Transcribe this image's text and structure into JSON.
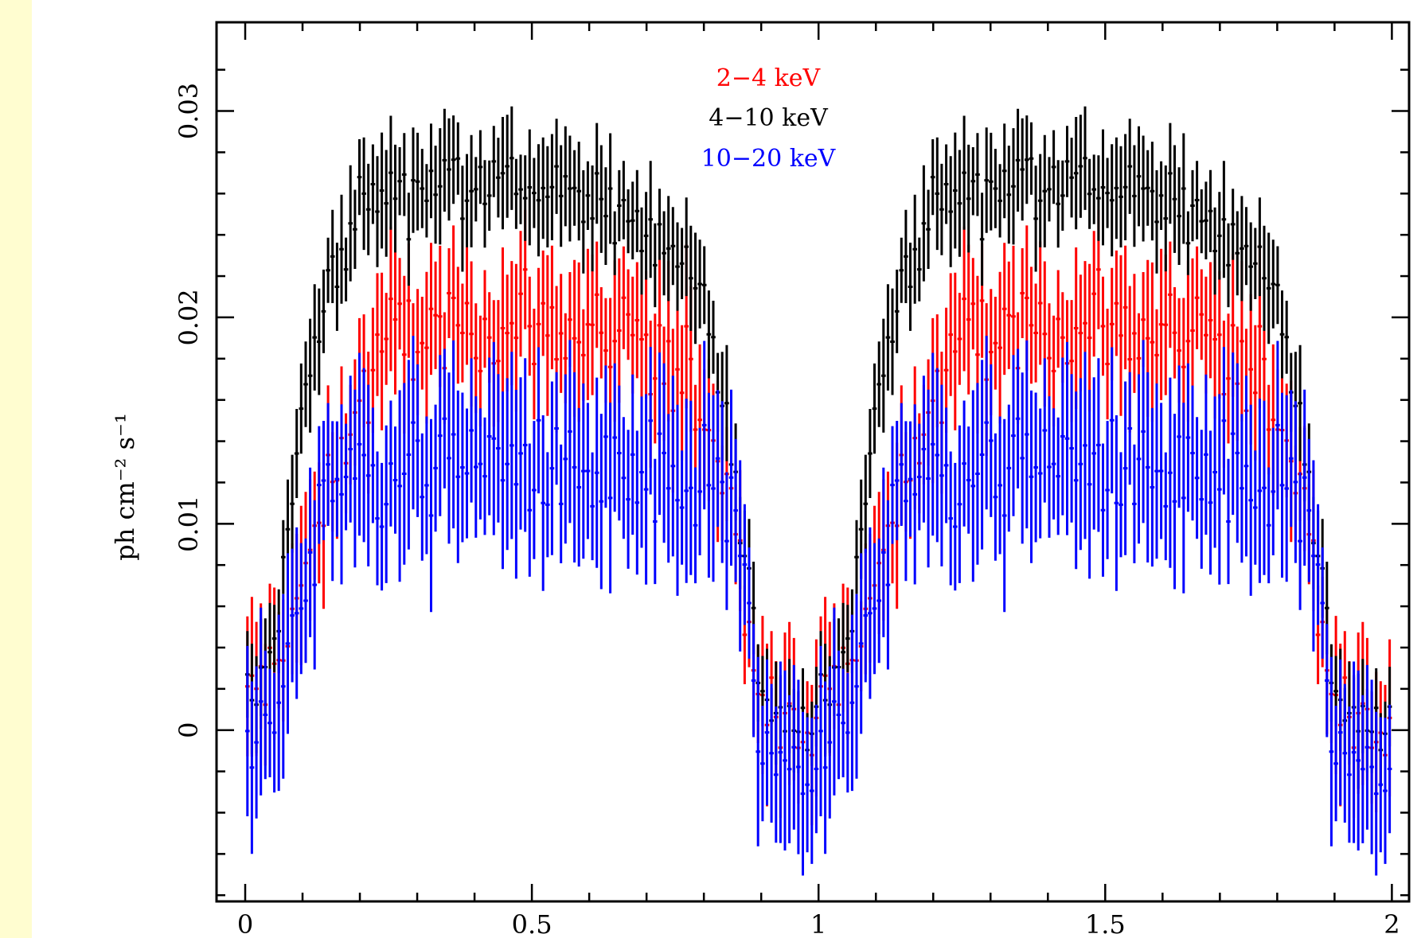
{
  "chart_data": {
    "type": "scatter",
    "title": "",
    "xlabel": "",
    "ylabel": "ph cm⁻² s⁻¹",
    "xlim": [
      -0.05,
      2.03
    ],
    "ylim": [
      -0.0083,
      0.0343
    ],
    "x_ticks": [
      {
        "value": 0,
        "label": "0"
      },
      {
        "value": 0.5,
        "label": "0.5"
      },
      {
        "value": 1,
        "label": "1"
      },
      {
        "value": 1.5,
        "label": "1.5"
      },
      {
        "value": 2,
        "label": "2"
      }
    ],
    "y_ticks": [
      {
        "value": 0,
        "label": "0"
      },
      {
        "value": 0.01,
        "label": "0.01"
      },
      {
        "value": 0.02,
        "label": "0.02"
      },
      {
        "value": 0.03,
        "label": "0.03"
      }
    ],
    "grid": false,
    "legend_position": "top-center",
    "bins_per_cycle": 128,
    "cycles_shown": 2,
    "series": [
      {
        "name": "2−4 keV",
        "color": "#ff0000",
        "x_period": 1,
        "profile_x": [
          0,
          0.05,
          0.1,
          0.15,
          0.2,
          0.25,
          0.3,
          0.35,
          0.4,
          0.45,
          0.5,
          0.55,
          0.6,
          0.65,
          0.7,
          0.75,
          0.8,
          0.85,
          0.9,
          0.95,
          1.0
        ],
        "profile_y": [
          0.0012,
          0.003,
          0.007,
          0.012,
          0.016,
          0.019,
          0.019,
          0.019,
          0.0195,
          0.0195,
          0.0195,
          0.0195,
          0.019,
          0.0185,
          0.018,
          0.0175,
          0.016,
          0.011,
          0.0018,
          0.0003,
          0.0012
        ],
        "error_y": 0.0031
      },
      {
        "name": "4−10 keV",
        "color": "#000000",
        "x_period": 1,
        "profile_x": [
          0,
          0.05,
          0.1,
          0.15,
          0.2,
          0.25,
          0.3,
          0.35,
          0.4,
          0.45,
          0.5,
          0.55,
          0.6,
          0.65,
          0.7,
          0.75,
          0.8,
          0.85,
          0.9,
          0.95,
          1.0
        ],
        "profile_y": [
          0.0006,
          0.0035,
          0.016,
          0.022,
          0.0255,
          0.0262,
          0.0265,
          0.027,
          0.0268,
          0.0265,
          0.0265,
          0.026,
          0.0255,
          0.025,
          0.0245,
          0.0235,
          0.0205,
          0.014,
          0.0012,
          0.0005,
          0.0006
        ],
        "error_y": 0.0022
      },
      {
        "name": "10−20 keV",
        "color": "#0000ff",
        "x_period": 1,
        "profile_x": [
          0,
          0.05,
          0.1,
          0.15,
          0.2,
          0.25,
          0.3,
          0.35,
          0.4,
          0.45,
          0.5,
          0.55,
          0.6,
          0.65,
          0.7,
          0.75,
          0.8,
          0.85,
          0.9,
          0.95,
          1.0
        ],
        "profile_y": [
          -0.0018,
          0.0,
          0.007,
          0.0125,
          0.0125,
          0.0125,
          0.0128,
          0.013,
          0.0132,
          0.013,
          0.0128,
          0.0125,
          0.0122,
          0.012,
          0.0118,
          0.0112,
          0.0125,
          0.011,
          -0.0015,
          -0.002,
          -0.0018
        ],
        "error_y": 0.0036
      }
    ]
  }
}
